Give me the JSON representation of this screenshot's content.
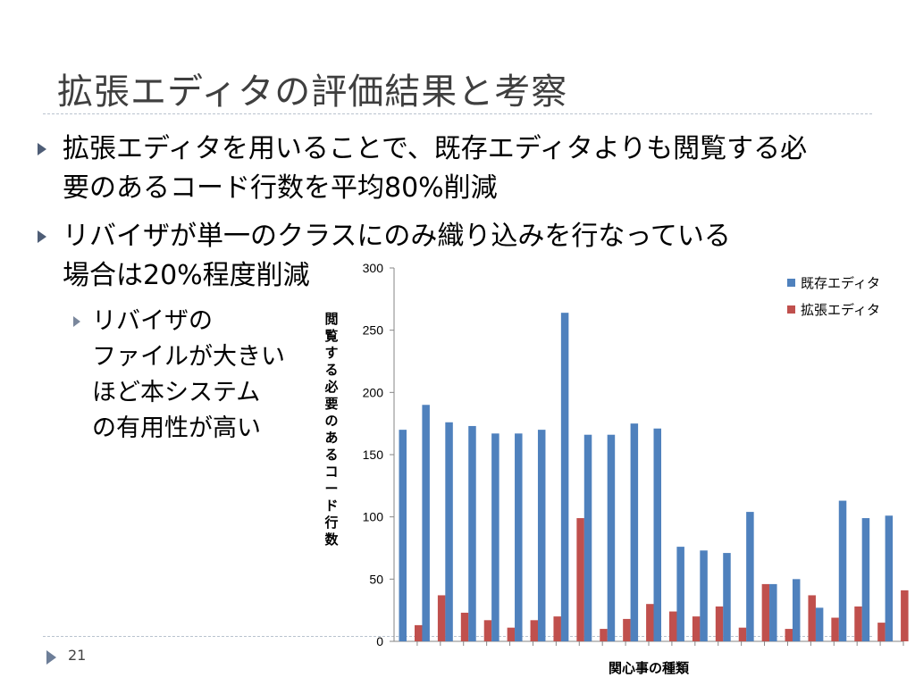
{
  "slide": {
    "title": "拡張エディタの評価結果と考察",
    "bullet1_line1": "拡張エディタを用いることで、既存エディタよりも閲覧する必",
    "bullet1_line2": "要のあるコード行数を平均80%削減",
    "bullet2_line1": "リバイザが単一のクラスにのみ織り込みを行なっている",
    "bullet2_line2": "場合は20%程度削減",
    "sub_line1": "リバイザの",
    "sub_line2": "ファイルが大きい",
    "sub_line3": "ほど本システム",
    "sub_line4": "の有用性が高い",
    "page_number": "21"
  },
  "chart_data": {
    "type": "bar",
    "xlabel": "関心事の種類",
    "ylabel": "閲覧する必要のあるコード行数",
    "ylim": [
      0,
      300
    ],
    "yticks": [
      "0",
      "50",
      "100",
      "150",
      "200",
      "250",
      "300"
    ],
    "legend_position": "top-right",
    "grid": false,
    "series": [
      {
        "name": "既存エディタ",
        "color": "#4f81bd",
        "values": [
          170,
          190,
          176,
          173,
          167,
          167,
          170,
          264,
          166,
          166,
          175,
          171,
          76,
          73,
          71,
          104,
          46,
          50,
          27,
          113,
          99,
          101
        ]
      },
      {
        "name": "拡張エディタ",
        "color": "#c0504d",
        "values": [
          13,
          37,
          23,
          17,
          11,
          17,
          20,
          99,
          10,
          18,
          30,
          24,
          20,
          28,
          11,
          46,
          10,
          37,
          19,
          28,
          15,
          41
        ]
      }
    ]
  }
}
